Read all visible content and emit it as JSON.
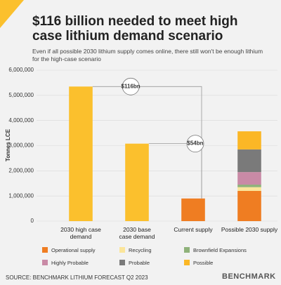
{
  "chart_data": {
    "type": "bar",
    "title": "$116 billion needed to meet high case lithium demand scenario",
    "subtitle": "Even if all possible 2030 lithium supply comes online, there still won't be enough lithium for the high-case scenario",
    "y_label": "Tonnes LCE",
    "categories": [
      "2030 high case demand",
      "2030 base case demand",
      "Current supply",
      "Possible 2030 supply"
    ],
    "values": [
      5350000,
      3080000,
      900000,
      null
    ],
    "colors": [
      "#fbc02d",
      "#fbc02d",
      "#ef7d22",
      null
    ],
    "series": [
      {
        "name": "Operational supply",
        "color": "#ef7d22",
        "values": [
          null,
          null,
          null,
          1200000
        ]
      },
      {
        "name": "Recycling",
        "color": "#fbe59a",
        "values": [
          null,
          null,
          null,
          150000
        ]
      },
      {
        "name": "Brownfield Expansions",
        "color": "#8fb27a",
        "values": [
          null,
          null,
          null,
          100000
        ]
      },
      {
        "name": "Highly Probable",
        "color": "#c98aa6",
        "values": [
          null,
          null,
          null,
          500000
        ]
      },
      {
        "name": "Probable",
        "color": "#7a7a7a",
        "values": [
          null,
          null,
          null,
          900000
        ]
      },
      {
        "name": "Possible",
        "color": "#fbb726",
        "values": [
          null,
          null,
          null,
          720000
        ]
      }
    ],
    "annotations": [
      "$116bn",
      "$54bn"
    ],
    "ylim": [
      0,
      6000000
    ],
    "yticks": [
      0,
      {
        "value": 1000000,
        "label": "1,000,000"
      },
      {
        "value": 2000000,
        "label": "2,000,000"
      },
      {
        "value": 3000000,
        "label": "3,000,000"
      },
      {
        "value": 4000000,
        "label": "4,000,000"
      },
      {
        "value": 5000000,
        "label": "5,000,000"
      },
      {
        "value": 6000000,
        "label": "6,000,000"
      }
    ],
    "source": "SOURCE: BENCHMARK LITHIUM FORECAST Q2 2023",
    "logo": "BENCHMARK"
  }
}
